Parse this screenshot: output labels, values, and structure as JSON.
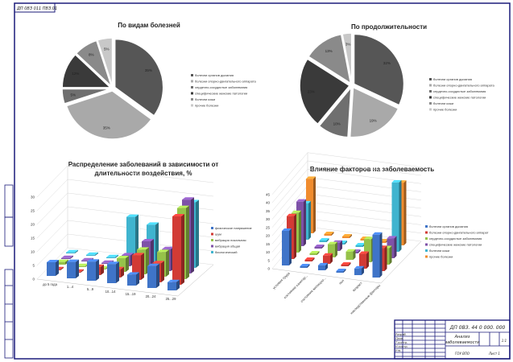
{
  "sheet_code_rotated": "ДП 0ВЗ 011 ПВЗ.01",
  "chart_data": [
    {
      "type": "pie",
      "title": "По видам болезней",
      "labels": [
        "болезни органов дыхания",
        "болезни опорно-двигательного аппарата",
        "сердечно-сосудистые заболевания",
        "специфические женские патологии",
        "болезни кожи",
        "прочие болезни"
      ],
      "values": [
        35,
        35,
        5,
        12,
        8,
        5
      ],
      "colors": [
        "#565656",
        "#a9a9a9",
        "#6f6f6f",
        "#3a3a3a",
        "#8a8a8a",
        "#c8c8c8"
      ],
      "legend": "right"
    },
    {
      "type": "pie",
      "title": "По продолжительности",
      "labels": [
        "болезни органов дыхания",
        "болезни опорно-двигательного аппарата",
        "сердечно-сосудистые заболевания",
        "специфические женские патологии",
        "болезни кожи",
        "прочие болезни"
      ],
      "values": [
        32,
        19,
        10,
        23,
        13,
        3
      ],
      "colors": [
        "#565656",
        "#a9a9a9",
        "#6f6f6f",
        "#3a3a3a",
        "#8a8a8a",
        "#c8c8c8"
      ],
      "legend": "right"
    },
    {
      "type": "bar",
      "title": "Распределение заболеваний в зависимости от длительности воздействия, %",
      "title_lines": [
        "Распределение заболеваний в зависимости от",
        "длительности воздействия, %"
      ],
      "categories": [
        "до 5 года",
        "1...4",
        "5...9",
        "10...14",
        "15...19",
        "20...24",
        "25...29"
      ],
      "yticks": [
        0,
        5,
        10,
        15,
        20,
        25,
        30
      ],
      "ylim": [
        0,
        30
      ],
      "legend": "right",
      "series": [
        {
          "name": "физическое напряжение",
          "color": "#3f74c8",
          "values": [
            5,
            6,
            7,
            7,
            4,
            8,
            3
          ]
        },
        {
          "name": "шум",
          "color": "#d23b35",
          "values": [
            0,
            0,
            3,
            3,
            9,
            7,
            25
          ]
        },
        {
          "name": "вибрация локальная",
          "color": "#96c24a",
          "values": [
            1,
            0,
            0,
            5,
            9,
            9,
            26
          ]
        },
        {
          "name": "вибрация общая",
          "color": "#7e52a8",
          "values": [
            0,
            0,
            0,
            4,
            10,
            8,
            27
          ]
        },
        {
          "name": "биологический",
          "color": "#3fb4cf",
          "values": [
            0,
            0,
            0,
            16,
            14,
            6,
            24
          ]
        }
      ]
    },
    {
      "type": "bar",
      "title": "Влияние факторов на заболеваемость",
      "categories": [
        "условия труда",
        "состояние санитар...",
        "состояние жилищно...",
        "пол",
        "возраст",
        "наследственные факторы"
      ],
      "yticks": [
        0,
        5,
        10,
        15,
        20,
        25,
        30,
        35,
        40,
        45
      ],
      "ylim": [
        0,
        45
      ],
      "legend": "right",
      "series": [
        {
          "name": "болезни органов дыхания",
          "color": "#3f74c8",
          "values": [
            21,
            1,
            3,
            1,
            4,
            26
          ]
        },
        {
          "name": "болезни опорно-двигательного аппарат",
          "color": "#d23b35",
          "values": [
            26,
            1,
            5,
            1,
            9,
            14
          ]
        },
        {
          "name": "сердечно-сосудистые заболевания",
          "color": "#96c24a",
          "values": [
            24,
            1,
            8,
            5,
            14,
            10
          ]
        },
        {
          "name": "специфические женские патологии",
          "color": "#7e52a8",
          "values": [
            27,
            1,
            5,
            1,
            1,
            12
          ]
        },
        {
          "name": "болезни кожи",
          "color": "#3fb4cf",
          "values": [
            22,
            1,
            1,
            1,
            1,
            42
          ]
        },
        {
          "name": "прочие болезни",
          "color": "#f08c2e",
          "values": [
            33,
            1,
            1,
            1,
            1,
            38
          ]
        }
      ]
    }
  ],
  "title_block": {
    "designation": "ДП 0ВЗ. 44 0 000. 000",
    "sheet_title_1": "Анализ",
    "sheet_title_2": "заболеваемости",
    "scale": "1:1",
    "sheets": "Лист 1",
    "org": "ГОУ ВПО",
    "roles": [
      "Разраб.",
      "Пров.",
      "Т.контр.",
      "Н.контр.",
      "Утв."
    ]
  }
}
